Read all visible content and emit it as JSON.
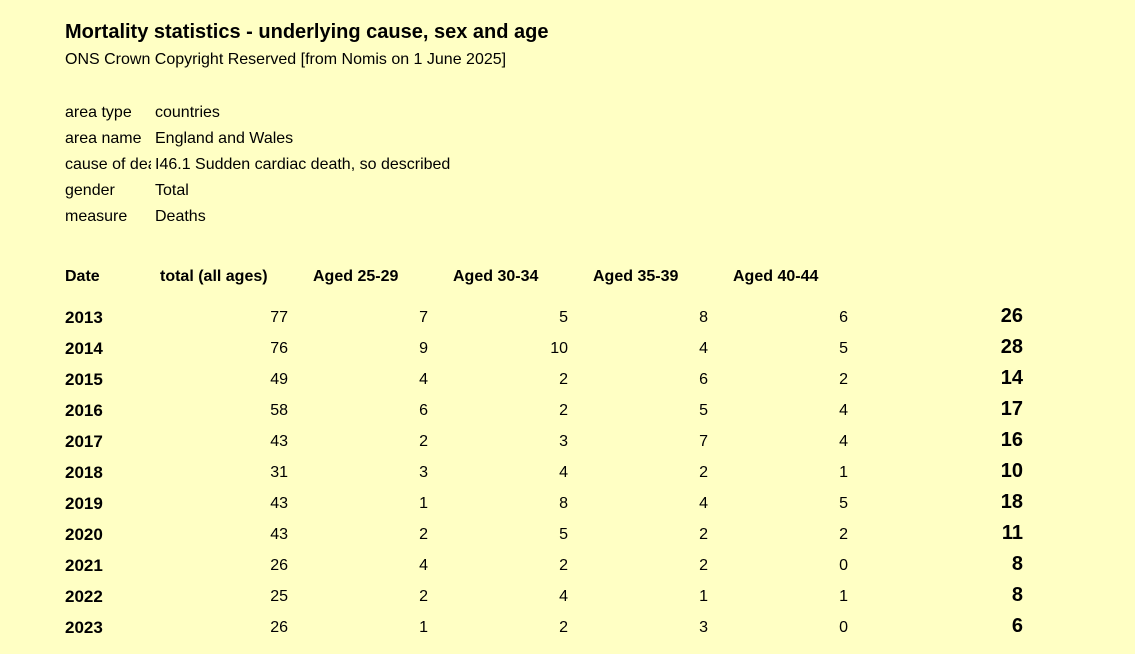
{
  "title": "Mortality statistics - underlying cause, sex and age",
  "subtitle": "ONS Crown Copyright Reserved [from Nomis on 1 June 2025]",
  "meta": [
    {
      "label": "area type",
      "value": "countries"
    },
    {
      "label": "area name",
      "value": "England and Wales"
    },
    {
      "label": "cause of death",
      "value": "I46.1 Sudden cardiac death, so described"
    },
    {
      "label": "gender",
      "value": "Total"
    },
    {
      "label": "measure",
      "value": "Deaths"
    }
  ],
  "table": {
    "headers": [
      "Date",
      "total (all ages)",
      "Aged 25-29",
      "Aged 30-34",
      "Aged 35-39",
      "Aged 40-44"
    ],
    "rows": [
      {
        "year": "2013",
        "total": "77",
        "a25": "7",
        "a30": "5",
        "a35": "8",
        "a40": "6",
        "sum": "26"
      },
      {
        "year": "2014",
        "total": "76",
        "a25": "9",
        "a30": "10",
        "a35": "4",
        "a40": "5",
        "sum": "28"
      },
      {
        "year": "2015",
        "total": "49",
        "a25": "4",
        "a30": "2",
        "a35": "6",
        "a40": "2",
        "sum": "14"
      },
      {
        "year": "2016",
        "total": "58",
        "a25": "6",
        "a30": "2",
        "a35": "5",
        "a40": "4",
        "sum": "17"
      },
      {
        "year": "2017",
        "total": "43",
        "a25": "2",
        "a30": "3",
        "a35": "7",
        "a40": "4",
        "sum": "16"
      },
      {
        "year": "2018",
        "total": "31",
        "a25": "3",
        "a30": "4",
        "a35": "2",
        "a40": "1",
        "sum": "10"
      },
      {
        "year": "2019",
        "total": "43",
        "a25": "1",
        "a30": "8",
        "a35": "4",
        "a40": "5",
        "sum": "18"
      },
      {
        "year": "2020",
        "total": "43",
        "a25": "2",
        "a30": "5",
        "a35": "2",
        "a40": "2",
        "sum": "11"
      },
      {
        "year": "2021",
        "total": "26",
        "a25": "4",
        "a30": "2",
        "a35": "2",
        "a40": "0",
        "sum": "8"
      },
      {
        "year": "2022",
        "total": "25",
        "a25": "2",
        "a30": "4",
        "a35": "1",
        "a40": "1",
        "sum": "8"
      },
      {
        "year": "2023",
        "total": "26",
        "a25": "1",
        "a30": "2",
        "a35": "3",
        "a40": "0",
        "sum": "6"
      }
    ]
  }
}
